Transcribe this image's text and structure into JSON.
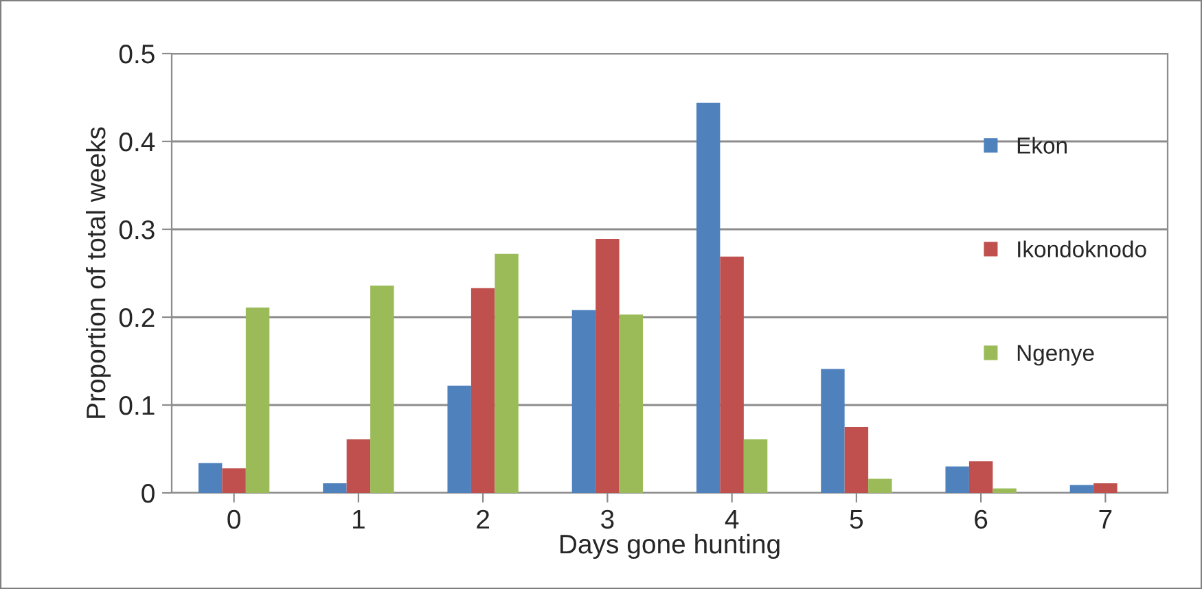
{
  "chart_data": {
    "type": "bar",
    "xlabel": "Days gone hunting",
    "ylabel": "Proportion of total weeks",
    "categories": [
      "0",
      "1",
      "2",
      "3",
      "4",
      "5",
      "6",
      "7"
    ],
    "series": [
      {
        "name": "Ekon",
        "color": "#4f81bd",
        "values": [
          0.034,
          0.011,
          0.122,
          0.208,
          0.444,
          0.141,
          0.03,
          0.009
        ]
      },
      {
        "name": "Ikondoknodo",
        "color": "#c0504d",
        "values": [
          0.028,
          0.061,
          0.233,
          0.289,
          0.269,
          0.075,
          0.036,
          0.011
        ]
      },
      {
        "name": "Ngenye",
        "color": "#9bbb59",
        "values": [
          0.211,
          0.236,
          0.272,
          0.203,
          0.061,
          0.016,
          0.005,
          null
        ]
      }
    ],
    "ylim": [
      0,
      0.5
    ],
    "yticks": [
      0,
      0.1,
      0.2,
      0.3,
      0.4,
      0.5
    ],
    "grid": "y",
    "legend": "right"
  }
}
